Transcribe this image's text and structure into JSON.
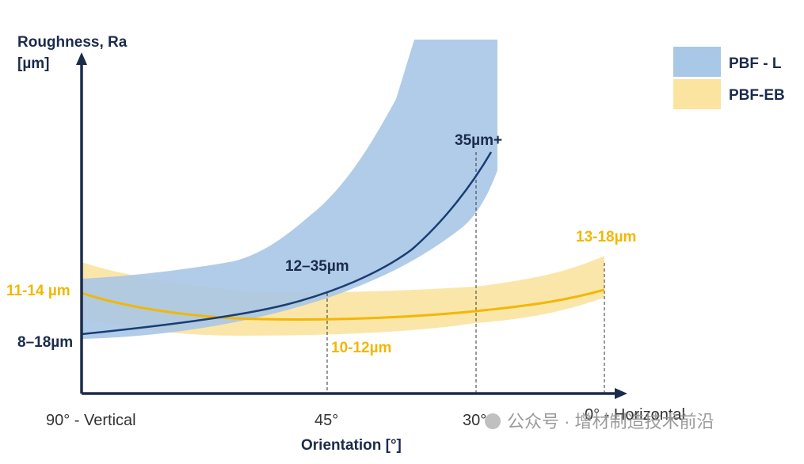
{
  "chart_data": {
    "type": "area",
    "ylabel_line1": "Roughness, Ra",
    "ylabel_line2": "[µm]",
    "xlabel": "Orientation  [°]",
    "x_ticks": [
      "90° - Vertical",
      "45°",
      "30°",
      "0° - Horizontal"
    ],
    "legend": [
      "PBF - L",
      "PBF-EB"
    ],
    "legend_position": "top-right",
    "colors": {
      "pbf_l": "#a9c7e6",
      "pbf_eb": "#fbe3a0",
      "pbf_l_line": "#1a3d73",
      "pbf_eb_line": "#f2b705",
      "axis": "#1b2b4b"
    },
    "series": [
      {
        "name": "PBF - L",
        "x": [
          90,
          45,
          30
        ],
        "y": [
          13,
          23.5,
          40
        ],
        "range": [
          [
            8,
            18
          ],
          [
            12,
            35
          ],
          [
            35,
            60
          ]
        ]
      },
      {
        "name": "PBF-EB",
        "x": [
          90,
          45,
          0
        ],
        "y": [
          12.5,
          11,
          15.5
        ],
        "range": [
          [
            11,
            14
          ],
          [
            10,
            12
          ],
          [
            13,
            18
          ]
        ]
      }
    ],
    "annotations": [
      {
        "text": "35µm+",
        "series": "PBF - L",
        "x": 30
      },
      {
        "text": "12–35µm",
        "series": "PBF - L",
        "x": 45
      },
      {
        "text": "8–18µm",
        "series": "PBF - L",
        "x": 90
      },
      {
        "text": "11-14 µm",
        "series": "PBF-EB",
        "x": 90
      },
      {
        "text": "10-12µm",
        "series": "PBF-EB",
        "x": 45
      },
      {
        "text": "13-18µm",
        "series": "PBF-EB",
        "x": 0
      }
    ]
  },
  "watermark": "公众号 · 增材制造技术前沿"
}
